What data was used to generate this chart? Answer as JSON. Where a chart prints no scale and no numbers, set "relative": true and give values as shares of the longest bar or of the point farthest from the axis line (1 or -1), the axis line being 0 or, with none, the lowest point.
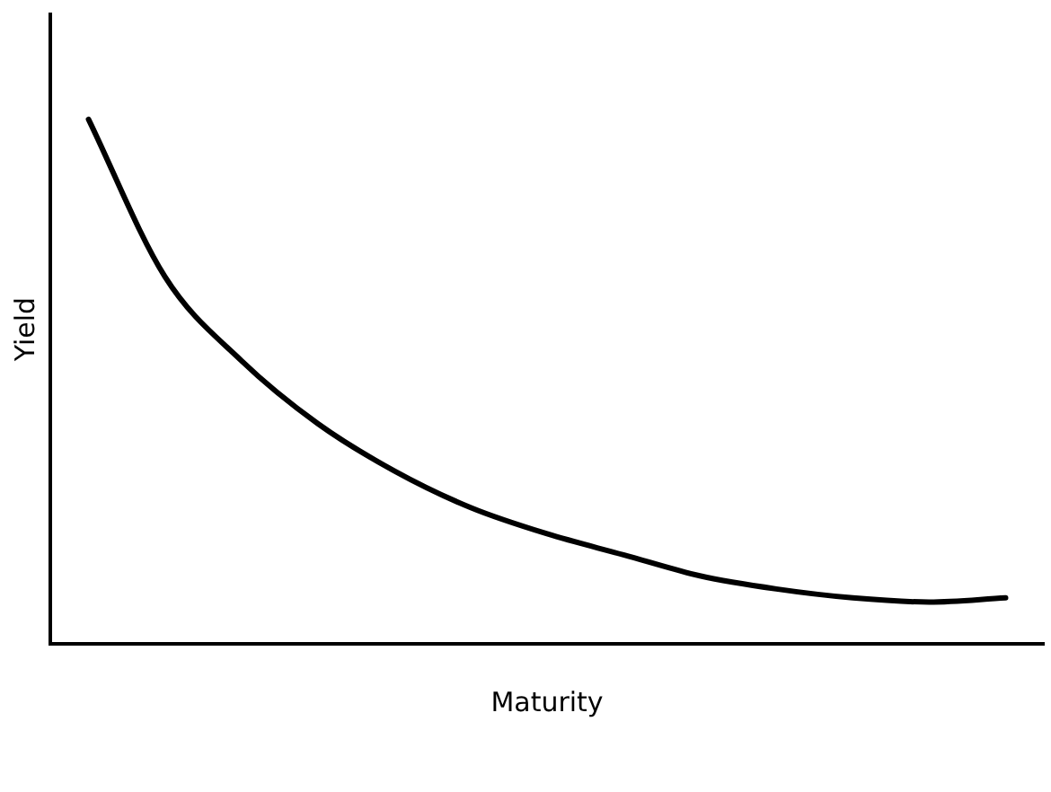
{
  "chart_data": {
    "type": "line",
    "xlabel": "Maturity",
    "ylabel": "Yield",
    "relative": true,
    "grid": false,
    "legend": false,
    "marker": "none",
    "line_style": "solid",
    "categories": [
      null,
      null,
      null,
      null,
      null,
      null,
      null,
      null,
      null,
      null,
      null,
      null,
      null
    ],
    "series": [
      {
        "color": "#000000",
        "values": [
          1,
          0.7,
          0.54,
          0.42,
          0.33,
          0.26,
          0.21,
          0.17,
          0.13,
          0.105,
          0.088,
          0.08,
          0.088
        ]
      }
    ]
  }
}
